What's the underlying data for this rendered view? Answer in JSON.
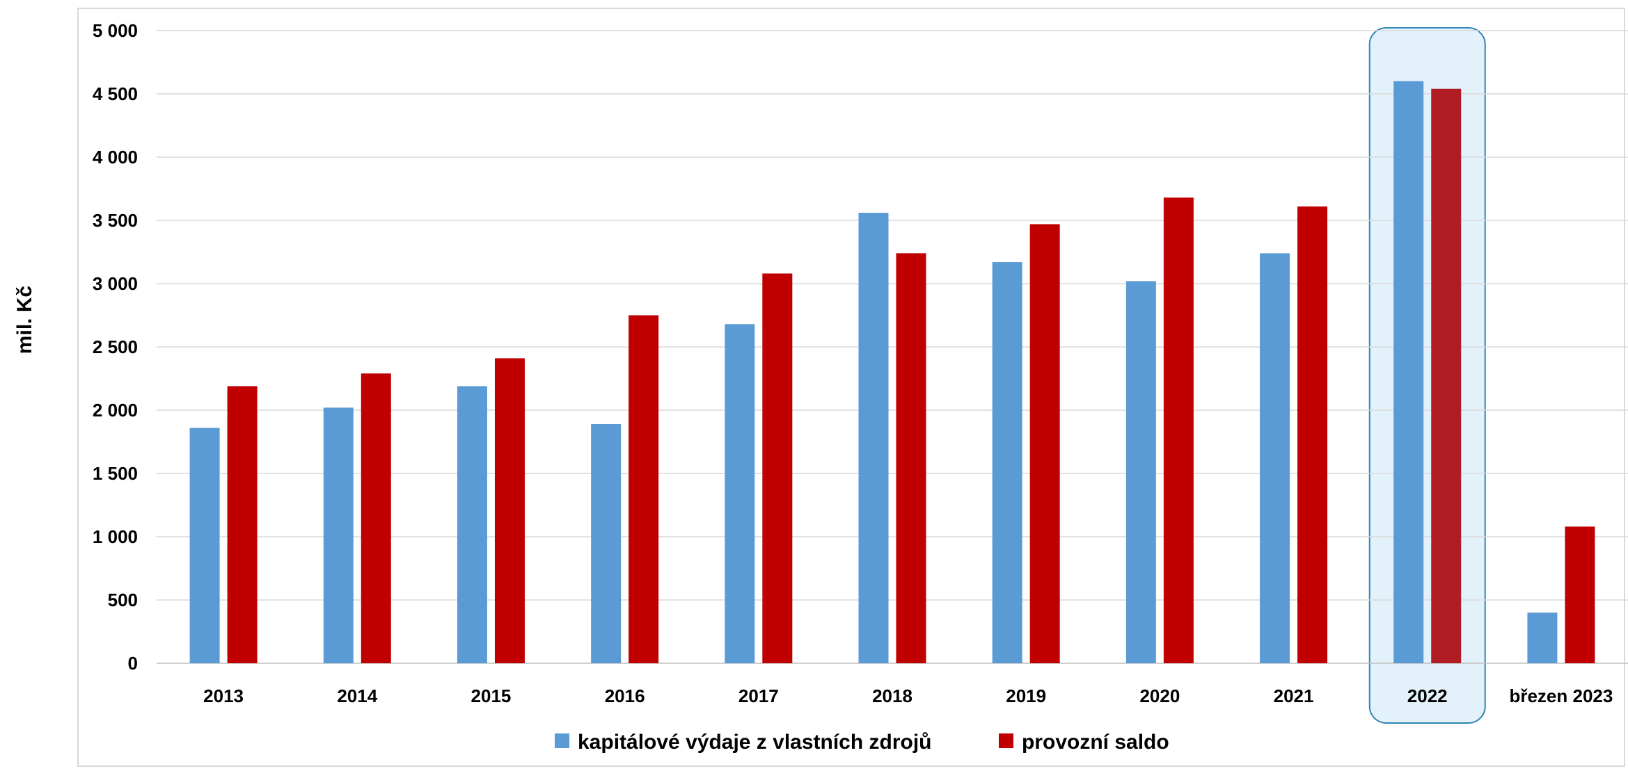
{
  "chart_data": {
    "type": "bar",
    "ylabel": "mil. Kč",
    "xlabel": "",
    "ylim": [
      0,
      5000
    ],
    "yticks": [
      "0",
      "500",
      "1 000",
      "1 500",
      "2 000",
      "2 500",
      "3 000",
      "3 500",
      "4 000",
      "4 500",
      "5 000"
    ],
    "categories": [
      "2013",
      "2014",
      "2015",
      "2016",
      "2017",
      "2018",
      "2019",
      "2020",
      "2021",
      "2022",
      "březen 2023"
    ],
    "series": [
      {
        "name": "kapitálové výdaje z vlastních zdrojů",
        "color": "#5B9BD5",
        "values": [
          1860,
          2020,
          2190,
          1890,
          2680,
          3560,
          3170,
          3020,
          3240,
          4600,
          400
        ]
      },
      {
        "name": "provozní saldo",
        "color": "#C00000",
        "values": [
          2190,
          2290,
          2410,
          2750,
          3080,
          3240,
          3470,
          3680,
          3610,
          4540,
          1080
        ]
      }
    ],
    "highlight": {
      "category": "2022",
      "fill": "#E3F1FA",
      "border": "#2E86B5",
      "series2_color": "#B01C23"
    },
    "grid": true,
    "legend_position": "bottom"
  }
}
